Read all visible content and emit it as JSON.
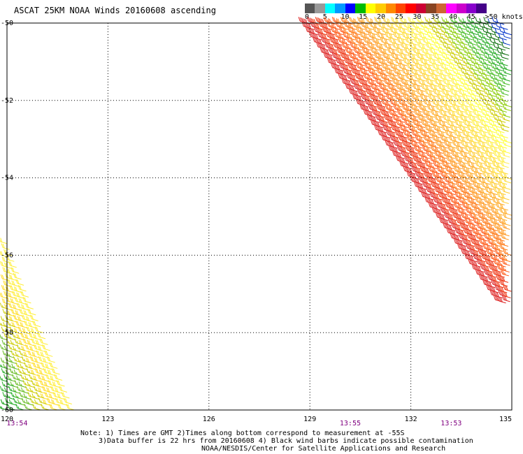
{
  "title": "ASCAT 25KM NOAA Winds 20160608 ascending",
  "legend": {
    "colors": [
      "#555555",
      "#999999",
      "#00ffff",
      "#0099ff",
      "#0000ff",
      "#00bb00",
      "#ffff00",
      "#ffcc00",
      "#ff8800",
      "#ff4400",
      "#ff0000",
      "#cc0033",
      "#884422",
      "#cc6633",
      "#ff00ff",
      "#cc00cc",
      "#8800cc",
      "#440088"
    ],
    "labels": [
      "0",
      "5",
      "10",
      "15",
      "20",
      "25",
      "30",
      "35",
      "40",
      "45",
      ">50 knots"
    ],
    "label_positions_kt": [
      0,
      5,
      10,
      15,
      20,
      25,
      30,
      35,
      40,
      45,
      50
    ]
  },
  "map": {
    "lat_labels": [
      "-50",
      "-52",
      "-54",
      "-56",
      "-58",
      "-60"
    ],
    "lat_values": [
      -50,
      -52,
      -54,
      -56,
      -58,
      -60
    ],
    "lon_labels": [
      "120",
      "123",
      "126",
      "129",
      "132",
      "135"
    ],
    "lon_values": [
      120,
      123,
      126,
      129,
      132,
      135
    ],
    "lon_range": [
      120,
      135
    ],
    "lat_range": [
      -50,
      -60
    ],
    "grid": "dotted",
    "time_labels": [
      {
        "text": "13:54",
        "lon": 120.3
      },
      {
        "text": "13:55",
        "lon": 130.2
      },
      {
        "text": "13:53",
        "lon": 133.2
      }
    ]
  },
  "swaths": [
    {
      "name": "east",
      "edge_start": [
        128.9,
        -50.0
      ],
      "edge_end": [
        134.7,
        -57.2
      ],
      "across": [
        6.0,
        0
      ],
      "colors": [
        "#dd2222",
        "#ee3311",
        "#ff5511",
        "#ff7711",
        "#ff9922",
        "#ffaa22",
        "#ffcc33",
        "#ffdd33",
        "#ffee44",
        "#ffff33",
        "#cccc00",
        "#88cc00",
        "#44bb22",
        "#22aa22",
        "#006600",
        "#0033cc"
      ],
      "speed_kt": [
        32,
        31,
        29,
        27,
        25,
        24,
        22,
        21,
        20,
        19,
        18,
        17,
        16,
        15,
        14,
        12
      ]
    },
    {
      "name": "west",
      "edge_start": [
        120.0,
        -55.7
      ],
      "edge_end": [
        122.0,
        -60.0
      ],
      "across": [
        -3.0,
        0
      ],
      "colors": [
        "#ffee33",
        "#ffdd22",
        "#cccc00",
        "#66bb22",
        "#22aa22",
        "#009900",
        "#0033cc",
        "#0000cc"
      ],
      "speed_kt": [
        21,
        20,
        19,
        17,
        16,
        15,
        12,
        11
      ]
    }
  ],
  "notes": [
    "Note: 1) Times are GMT 2)Times along bottom correspond to measurement at -55S",
    "3)Data buffer is 22 hrs from 20160608 4) Black wind barbs indicate possible contamination",
    "NOAA/NESDIS/Center for Satellite Applications and Research"
  ]
}
